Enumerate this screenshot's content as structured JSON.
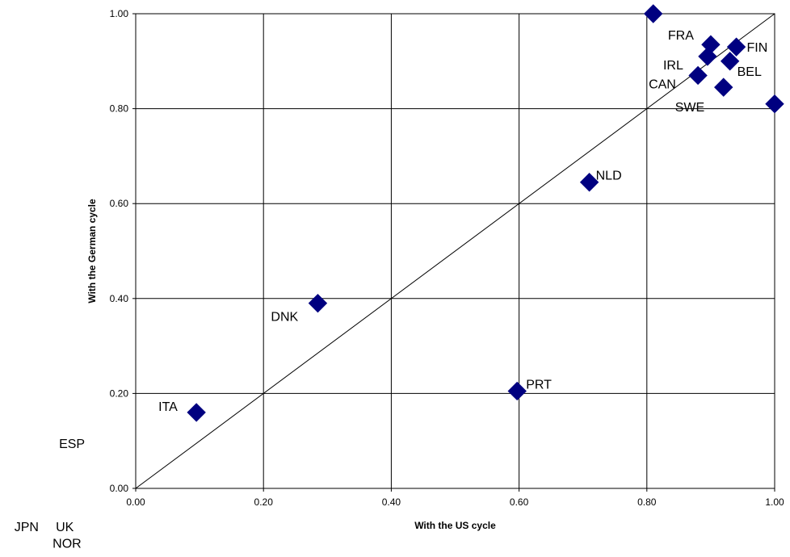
{
  "chart_data": {
    "type": "scatter",
    "xlabel": "With the US cycle",
    "ylabel": "With the German cycle",
    "xlim": [
      0,
      1
    ],
    "ylim": [
      0,
      1
    ],
    "xticks": [
      "0.00",
      "0.20",
      "0.40",
      "0.60",
      "0.80",
      "1.00"
    ],
    "yticks": [
      "0.00",
      "0.20",
      "0.40",
      "0.60",
      "0.80",
      "1.00"
    ],
    "grid": true,
    "reference_line": "diagonal y = x",
    "marker": "diamond",
    "marker_color": "#000080",
    "points": [
      {
        "label": "",
        "x": 0.81,
        "y": 1.0
      },
      {
        "label": "FRA",
        "x": 0.9,
        "y": 0.935
      },
      {
        "label": "FIN",
        "x": 0.94,
        "y": 0.93
      },
      {
        "label": "IRL",
        "x": 0.895,
        "y": 0.91
      },
      {
        "label": "BEL",
        "x": 0.93,
        "y": 0.9
      },
      {
        "label": "CAN",
        "x": 0.88,
        "y": 0.87
      },
      {
        "label": "SWE",
        "x": 0.92,
        "y": 0.845
      },
      {
        "label": "",
        "x": 1.0,
        "y": 0.81
      },
      {
        "label": "NLD",
        "x": 0.71,
        "y": 0.645
      },
      {
        "label": "DNK",
        "x": 0.285,
        "y": 0.39
      },
      {
        "label": "PRT",
        "x": 0.597,
        "y": 0.205
      },
      {
        "label": "ITA",
        "x": 0.095,
        "y": 0.16
      }
    ],
    "outside_labels": [
      {
        "label": "ESP",
        "x": -0.12,
        "y": 0.085
      },
      {
        "label": "JPN",
        "x": -0.19,
        "y": -0.09
      },
      {
        "label": "UK",
        "x": -0.125,
        "y": -0.09
      },
      {
        "label": "NOR",
        "x": -0.13,
        "y": -0.125
      }
    ]
  }
}
